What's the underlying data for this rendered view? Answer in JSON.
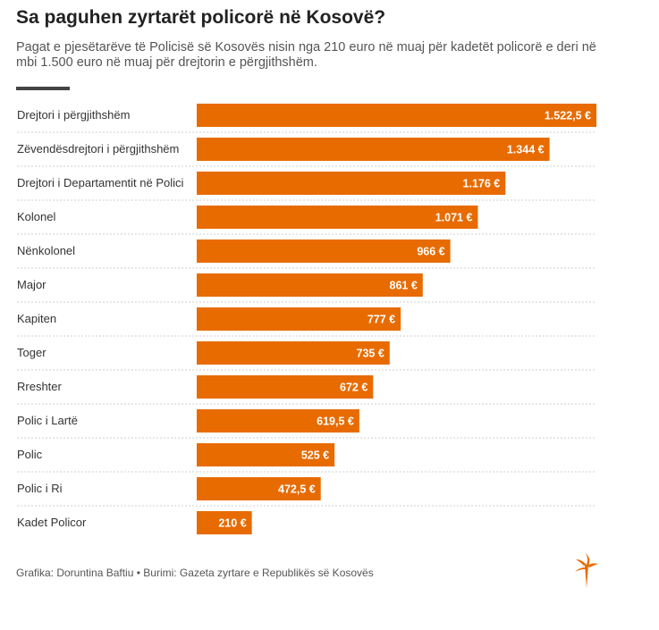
{
  "chart_data": {
    "type": "bar",
    "orientation": "horizontal",
    "title": "Sa paguhen zyrtarët policorë në Kosovë?",
    "subtitle": "Pagat e pjesëtarëve të Policisë së Kosovës nisin nga 210 euro në muaj për kadetët policorë e deri në mbi 1.500 euro në muaj për drejtorin e përgjithshëm.",
    "categories": [
      "Drejtori i përgjithshëm",
      "Zëvendësdrejtori i përgjithshëm",
      "Drejtori i Departamentit në Polici",
      "Kolonel",
      "Nënkolonel",
      "Major",
      "Kapiten",
      "Toger",
      "Rreshter",
      "Polic i Lartë",
      "Polic",
      "Polic i Ri",
      "Kadet Policor"
    ],
    "values": [
      1522.5,
      1344,
      1176,
      1071,
      966,
      861,
      777,
      735,
      672,
      619.5,
      525,
      472.5,
      210
    ],
    "value_labels": [
      "1.522,5 €",
      "1.344 €",
      "1.176 €",
      "1.071 €",
      "966 €",
      "861 €",
      "777 €",
      "735 €",
      "672 €",
      "619,5 €",
      "525 €",
      "472,5 €",
      "210 €"
    ],
    "xlim": [
      0,
      1522.5
    ],
    "bar_color": "#e86b00",
    "grid": false,
    "legend": "none"
  },
  "footer": "Grafika: Doruntina Baftiu • Burimi: Gazeta zyrtare e Republikës së Kosovës",
  "logo": "rfe-torch-logo"
}
